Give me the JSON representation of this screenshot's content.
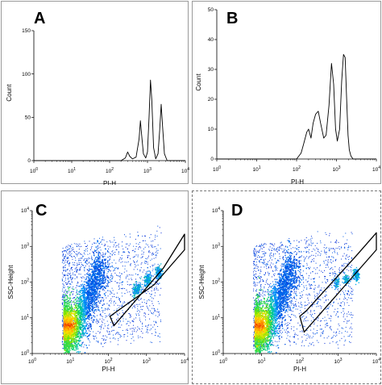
{
  "panels": {
    "A": {
      "letter": "A"
    },
    "B": {
      "letter": "B"
    },
    "C": {
      "letter": "C"
    },
    "D": {
      "letter": "D"
    }
  },
  "chart_data": [
    {
      "panel": "A",
      "type": "line",
      "xlabel": "PI-H",
      "ylabel": "Count",
      "xscale": "log",
      "xlim": [
        1,
        10000
      ],
      "ylim": [
        0,
        150
      ],
      "yticks": [
        "0",
        "50",
        "100",
        "150"
      ],
      "xticks": [
        "10^0",
        "10^1",
        "10^2",
        "10^3",
        "10^4"
      ],
      "series": [
        {
          "x": [
            1,
            200,
            260,
            300,
            340,
            400,
            500,
            600,
            650,
            700,
            780,
            900,
            1000,
            1100,
            1200,
            1300,
            1450,
            1650,
            1900,
            2100,
            2300,
            2500,
            2800,
            3300,
            10000
          ],
          "values": [
            0,
            0,
            3,
            10,
            5,
            2,
            4,
            25,
            46,
            30,
            8,
            3,
            10,
            50,
            93,
            70,
            15,
            2,
            8,
            35,
            65,
            40,
            8,
            0,
            0
          ]
        }
      ]
    },
    {
      "panel": "B",
      "type": "line",
      "xlabel": "PI-H",
      "ylabel": "Count",
      "xscale": "log",
      "xlim": [
        1,
        10000
      ],
      "ylim": [
        0,
        50
      ],
      "yticks": [
        "0",
        "10",
        "20",
        "30",
        "40",
        "50"
      ],
      "xticks": [
        "10^0",
        "10^1",
        "10^2",
        "10^3",
        "10^4"
      ],
      "series": [
        {
          "x": [
            1,
            100,
            130,
            150,
            180,
            200,
            230,
            260,
            300,
            350,
            400,
            480,
            550,
            650,
            750,
            850,
            950,
            1050,
            1200,
            1350,
            1500,
            1650,
            1800,
            1950,
            2100,
            2300,
            2600,
            3000,
            3500,
            10000
          ],
          "values": [
            0,
            0,
            2,
            5,
            9,
            10,
            7,
            12,
            15,
            16,
            12,
            7,
            8,
            18,
            32,
            25,
            10,
            6,
            10,
            26,
            35,
            34,
            20,
            8,
            3,
            1,
            0,
            0,
            0,
            0
          ]
        }
      ]
    },
    {
      "panel": "C",
      "type": "scatter",
      "xlabel": "PI-H",
      "ylabel": "SSC-Height",
      "xscale": "log",
      "yscale": "log",
      "xlim": [
        1,
        10000
      ],
      "ylim": [
        1,
        10000
      ],
      "xticks": [
        "10^0",
        "10^1",
        "10^2",
        "10^3",
        "10^4"
      ],
      "yticks": [
        "10^0",
        "10^1",
        "10^2",
        "10^3",
        "10^4"
      ],
      "clusters": [
        {
          "x": 6,
          "y": 30,
          "level": "hot"
        },
        {
          "x": 10,
          "y": 8,
          "level": "warm"
        },
        {
          "x": 500,
          "y": 60,
          "level": "cool"
        },
        {
          "x": 1000,
          "y": 100,
          "level": "cool"
        },
        {
          "x": 2000,
          "y": 150,
          "level": "cool"
        }
      ],
      "gate": "polygon"
    },
    {
      "panel": "D",
      "type": "scatter",
      "xlabel": "PI-H",
      "ylabel": "SSC-Height",
      "xscale": "log",
      "yscale": "log",
      "xlim": [
        1,
        10000
      ],
      "ylim": [
        1,
        10000
      ],
      "xticks": [
        "10^0",
        "10^1",
        "10^2",
        "10^3",
        "10^4"
      ],
      "yticks": [
        "10^0",
        "10^1",
        "10^2",
        "10^3",
        "10^4"
      ],
      "clusters": [
        {
          "x": 6,
          "y": 30,
          "level": "hot"
        },
        {
          "x": 10,
          "y": 8,
          "level": "warm"
        },
        {
          "x": 800,
          "y": 100,
          "level": "cool"
        },
        {
          "x": 1500,
          "y": 120,
          "level": "cool"
        },
        {
          "x": 3000,
          "y": 180,
          "level": "cool"
        }
      ],
      "gate": "polygon"
    }
  ]
}
